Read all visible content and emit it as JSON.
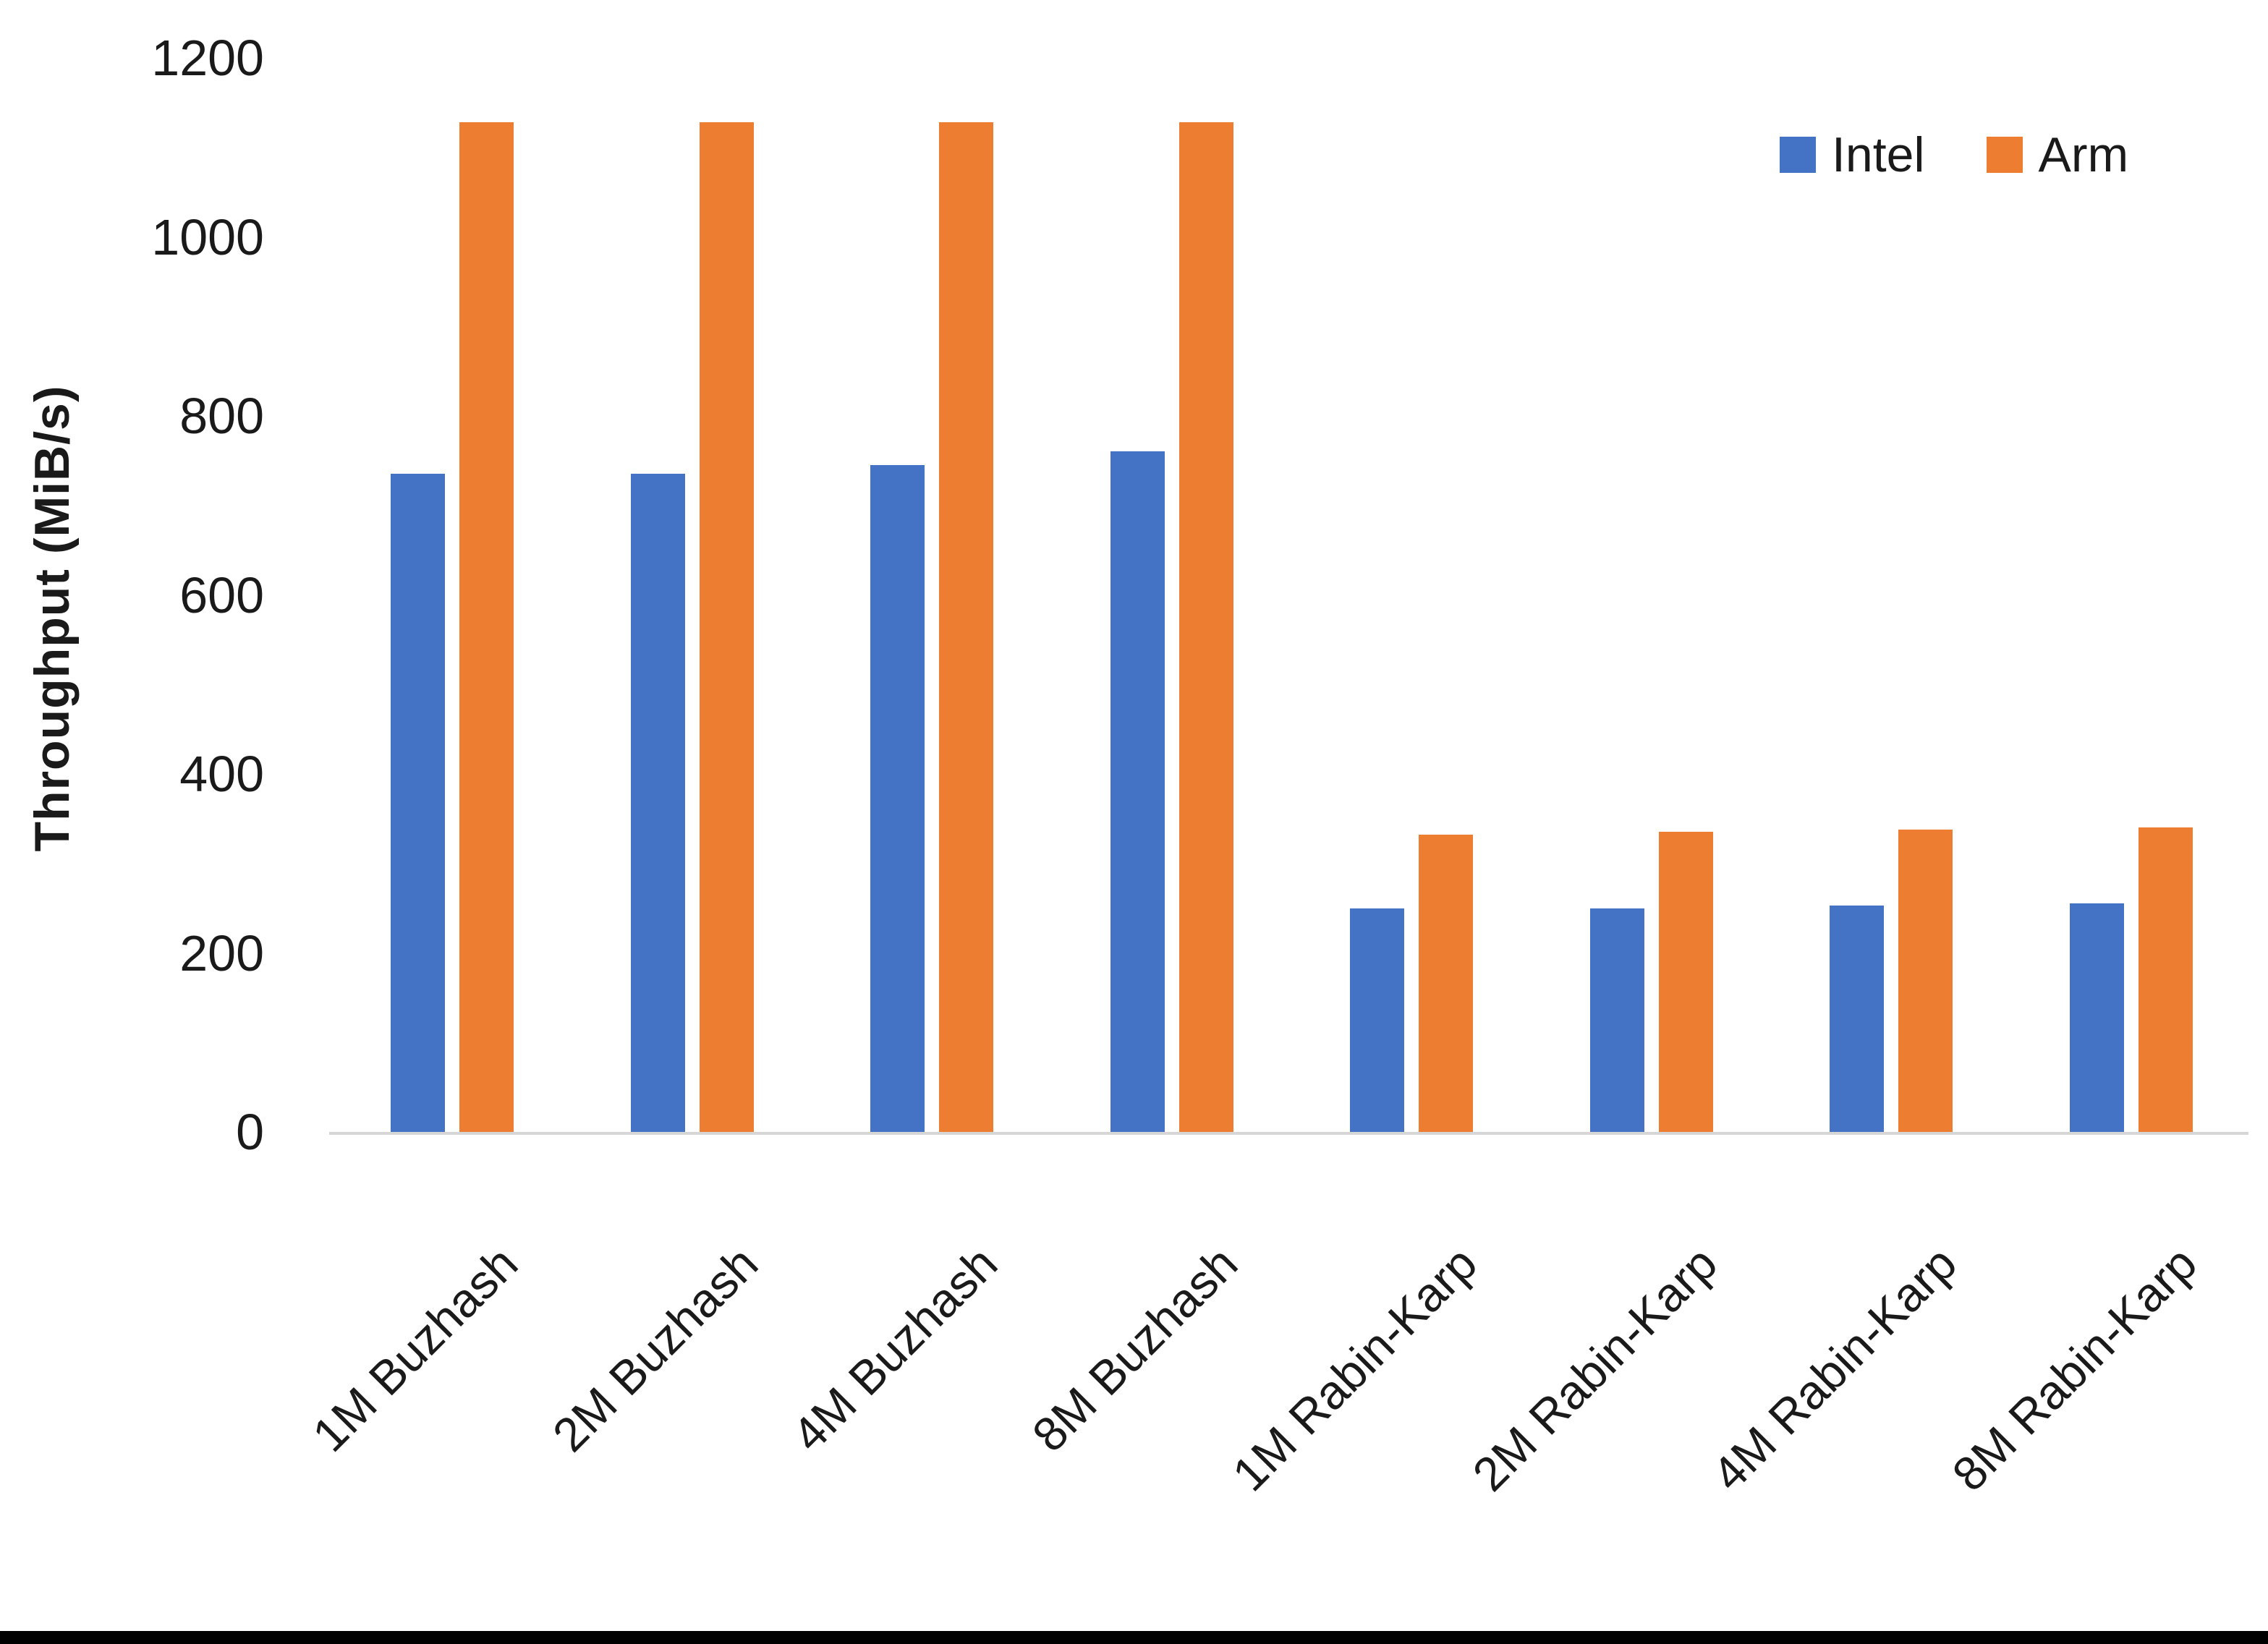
{
  "chart_data": {
    "type": "bar",
    "title": "",
    "xlabel": "",
    "ylabel": "Throughput (MiB/s)",
    "categories": [
      "1M Buzhash",
      "2M Buzhash",
      "4M Buzhash",
      "8M Buzhash",
      "1M Rabin-Karp",
      "2M Rabin-Karp",
      "4M Rabin-Karp",
      "8M Rabin-Karp"
    ],
    "series": [
      {
        "name": "Intel",
        "color": "#4472C4",
        "values": [
          735,
          735,
          745,
          760,
          250,
          250,
          253,
          255
        ]
      },
      {
        "name": "Arm",
        "color": "#ED7D31",
        "values": [
          1128,
          1128,
          1128,
          1128,
          332,
          335,
          338,
          340
        ]
      }
    ],
    "ylim": [
      0,
      1200
    ],
    "yticks": [
      0,
      200,
      400,
      600,
      800,
      1000,
      1200
    ],
    "grid": false,
    "legend_position": "top-right",
    "axis_line_color": "#d6d6d6",
    "text_color": "#1a1a1a"
  },
  "frame": {
    "bottom_border_color": "#000000"
  }
}
